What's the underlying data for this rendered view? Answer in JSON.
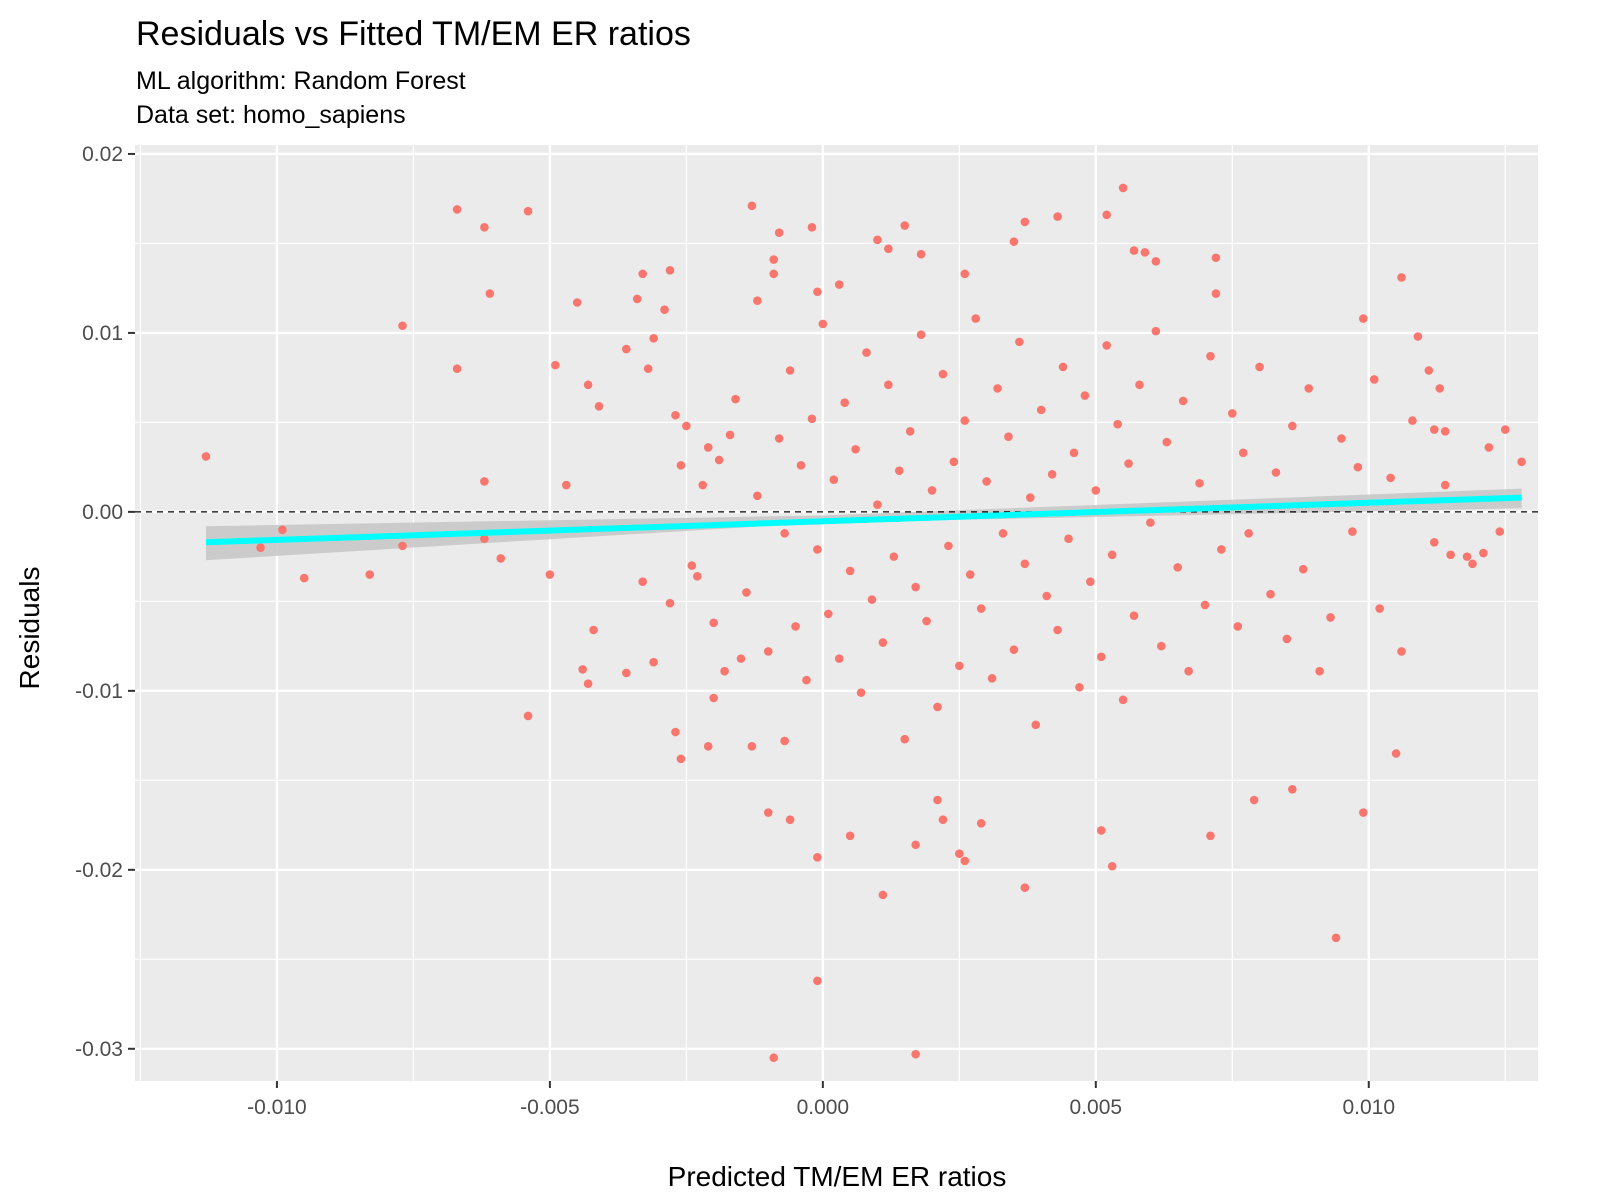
{
  "header": {
    "title": "Residuals vs Fitted TM/EM ER ratios",
    "subtitle_line1": "ML algorithm: Random Forest",
    "subtitle_line2": "Data set: homo_sapiens"
  },
  "chart_data": {
    "type": "scatter",
    "title": "Residuals vs Fitted TM/EM ER ratios",
    "subtitle": [
      "ML algorithm: Random Forest",
      "Data set: homo_sapiens"
    ],
    "xlabel": "Predicted TM/EM ER ratios",
    "ylabel": "Residuals",
    "xlim": [
      -0.0126,
      0.0131
    ],
    "ylim": [
      -0.0318,
      0.0205
    ],
    "x_ticks": [
      -0.01,
      -0.005,
      0.0,
      0.005,
      0.01
    ],
    "x_tick_labels": [
      "-0.010",
      "-0.005",
      "0.000",
      "0.005",
      "0.010"
    ],
    "y_ticks": [
      -0.03,
      -0.02,
      -0.01,
      0.0,
      0.01,
      0.02
    ],
    "y_tick_labels": [
      "-0.03",
      "-0.02",
      "-0.01",
      "0.00",
      "0.01",
      "0.02"
    ],
    "grid": true,
    "point_color": "#F8766D",
    "panel_background": "#EBEBEB",
    "reference_line": {
      "y": 0.0,
      "style": "dashed",
      "color": "#000000"
    },
    "trend_line": {
      "method": "linear fit",
      "color": "#00FFFF",
      "band_color": "#C8C8C8",
      "points": [
        [
          -0.0113,
          -0.0017
        ],
        [
          0.0128,
          0.0008
        ]
      ],
      "band": [
        [
          -0.0113,
          -0.0027,
          -0.0008
        ],
        [
          0.0,
          -0.0006,
          -0.0002
        ],
        [
          0.0128,
          0.0002,
          0.0013
        ]
      ]
    },
    "series": [
      {
        "points": [
          [
            -0.0113,
            0.0031
          ],
          [
            -0.0103,
            -0.002
          ],
          [
            -0.0099,
            -0.001
          ],
          [
            -0.0095,
            -0.0037
          ],
          [
            -0.0083,
            -0.0035
          ],
          [
            -0.0077,
            0.0104
          ],
          [
            -0.0077,
            -0.0019
          ],
          [
            -0.0067,
            0.0169
          ],
          [
            -0.0067,
            0.008
          ],
          [
            -0.0062,
            0.0159
          ],
          [
            -0.0061,
            0.0122
          ],
          [
            -0.0062,
            0.0017
          ],
          [
            -0.0062,
            -0.0015
          ],
          [
            -0.0059,
            -0.0026
          ],
          [
            -0.0054,
            0.0168
          ],
          [
            -0.0054,
            -0.0114
          ],
          [
            -0.005,
            -0.0035
          ],
          [
            -0.0049,
            0.0082
          ],
          [
            -0.0047,
            0.0015
          ],
          [
            -0.0045,
            0.0117
          ],
          [
            -0.0043,
            0.0071
          ],
          [
            -0.0041,
            0.0059
          ],
          [
            -0.0044,
            -0.0088
          ],
          [
            -0.0043,
            -0.0096
          ],
          [
            -0.0042,
            -0.0066
          ],
          [
            -0.0036,
            0.0091
          ],
          [
            -0.0034,
            0.0119
          ],
          [
            -0.0033,
            0.0133
          ],
          [
            -0.0032,
            0.008
          ],
          [
            -0.0031,
            0.0097
          ],
          [
            -0.0033,
            -0.0039
          ],
          [
            -0.0036,
            -0.009
          ],
          [
            -0.0031,
            -0.0084
          ],
          [
            -0.0029,
            0.0113
          ],
          [
            -0.0028,
            0.0135
          ],
          [
            -0.0027,
            0.0054
          ],
          [
            -0.0026,
            0.0026
          ],
          [
            -0.0027,
            -0.0123
          ],
          [
            -0.0026,
            -0.0138
          ],
          [
            -0.0024,
            -0.003
          ],
          [
            -0.0021,
            0.0036
          ],
          [
            -0.002,
            -0.0104
          ],
          [
            -0.0021,
            -0.0131
          ],
          [
            -0.0017,
            0.0043
          ],
          [
            -0.0015,
            -0.0082
          ],
          [
            -0.0013,
            0.0171
          ],
          [
            -0.0012,
            0.0118
          ],
          [
            -0.0013,
            -0.0131
          ],
          [
            -0.001,
            -0.0168
          ],
          [
            -0.0009,
            0.0141
          ],
          [
            -0.0009,
            0.0133
          ],
          [
            -0.0008,
            0.0156
          ],
          [
            -0.0007,
            -0.0128
          ],
          [
            -0.0006,
            -0.0172
          ],
          [
            -0.0009,
            -0.0305
          ],
          [
            -0.0002,
            0.0159
          ],
          [
            -0.0001,
            0.0123
          ],
          [
            -0.0001,
            -0.0262
          ],
          [
            -0.0001,
            -0.0193
          ],
          [
            0.0003,
            0.0127
          ],
          [
            0.0005,
            -0.0181
          ],
          [
            0.0011,
            -0.0214
          ],
          [
            0.001,
            0.0152
          ],
          [
            0.0012,
            0.0147
          ],
          [
            0.0015,
            0.016
          ],
          [
            0.0017,
            -0.0186
          ],
          [
            0.0017,
            -0.0303
          ],
          [
            0.0018,
            0.0144
          ],
          [
            0.0021,
            -0.0161
          ],
          [
            0.0022,
            -0.0172
          ],
          [
            0.0025,
            -0.0191
          ],
          [
            0.0026,
            -0.0195
          ],
          [
            0.0026,
            0.0133
          ],
          [
            0.0029,
            -0.0174
          ],
          [
            0.0035,
            0.0151
          ],
          [
            0.0037,
            0.0162
          ],
          [
            0.0037,
            -0.021
          ],
          [
            0.0043,
            0.0165
          ],
          [
            0.0052,
            0.0166
          ],
          [
            0.0055,
            0.0181
          ],
          [
            0.0057,
            0.0146
          ],
          [
            0.0053,
            -0.0198
          ],
          [
            0.0051,
            -0.0178
          ],
          [
            0.0059,
            0.0145
          ],
          [
            0.0061,
            0.014
          ],
          [
            0.0072,
            0.0142
          ],
          [
            0.0072,
            0.0122
          ],
          [
            0.0071,
            -0.0181
          ],
          [
            0.0079,
            -0.0161
          ],
          [
            0.0086,
            -0.0155
          ],
          [
            0.0094,
            -0.0238
          ],
          [
            0.0099,
            -0.0168
          ],
          [
            0.0105,
            -0.0135
          ],
          [
            0.0106,
            -0.0078
          ],
          [
            0.0106,
            0.0131
          ],
          [
            0.0109,
            0.0098
          ],
          [
            0.0111,
            0.0079
          ],
          [
            0.0113,
            0.0069
          ],
          [
            0.0112,
            0.0046
          ],
          [
            0.0114,
            0.0015
          ],
          [
            0.0115,
            -0.0024
          ],
          [
            0.0118,
            -0.0025
          ],
          [
            0.0119,
            -0.0029
          ],
          [
            0.0122,
            0.0036
          ],
          [
            0.0124,
            -0.0011
          ],
          [
            0.0125,
            0.0046
          ],
          [
            0.0128,
            0.0028
          ],
          [
            0.0121,
            -0.0023
          ],
          [
            0.0114,
            0.0045
          ],
          [
            0.0112,
            -0.0017
          ],
          [
            0.0108,
            0.0051
          ],
          [
            0.0104,
            0.0019
          ],
          [
            0.0102,
            -0.0054
          ],
          [
            0.0101,
            0.0074
          ],
          [
            0.0099,
            0.0108
          ],
          [
            0.0098,
            0.0025
          ],
          [
            0.0097,
            -0.0011
          ],
          [
            0.0095,
            0.0041
          ],
          [
            0.0093,
            -0.0059
          ],
          [
            0.0091,
            -0.0089
          ],
          [
            0.0089,
            0.0069
          ],
          [
            0.0088,
            -0.0032
          ],
          [
            0.0086,
            0.0048
          ],
          [
            0.0085,
            -0.0071
          ],
          [
            0.0083,
            0.0022
          ],
          [
            0.0082,
            -0.0046
          ],
          [
            0.008,
            0.0081
          ],
          [
            0.0078,
            -0.0012
          ],
          [
            0.0077,
            0.0033
          ],
          [
            0.0076,
            -0.0064
          ],
          [
            0.0075,
            0.0055
          ],
          [
            0.0073,
            -0.0021
          ],
          [
            0.0071,
            0.0087
          ],
          [
            0.007,
            -0.0052
          ],
          [
            0.0069,
            0.0016
          ],
          [
            0.0067,
            -0.0089
          ],
          [
            0.0066,
            0.0062
          ],
          [
            0.0065,
            -0.0031
          ],
          [
            0.0063,
            0.0039
          ],
          [
            0.0062,
            -0.0075
          ],
          [
            0.0061,
            0.0101
          ],
          [
            0.006,
            -0.0006
          ],
          [
            0.0058,
            0.0071
          ],
          [
            0.0057,
            -0.0058
          ],
          [
            0.0056,
            0.0027
          ],
          [
            0.0055,
            -0.0105
          ],
          [
            0.0054,
            0.0049
          ],
          [
            0.0053,
            -0.0024
          ],
          [
            0.0052,
            0.0093
          ],
          [
            0.0051,
            -0.0081
          ],
          [
            0.005,
            0.0012
          ],
          [
            0.0049,
            -0.0039
          ],
          [
            0.0048,
            0.0065
          ],
          [
            0.0047,
            -0.0098
          ],
          [
            0.0046,
            0.0033
          ],
          [
            0.0045,
            -0.0015
          ],
          [
            0.0044,
            0.0081
          ],
          [
            0.0043,
            -0.0066
          ],
          [
            0.0042,
            0.0021
          ],
          [
            0.0041,
            -0.0047
          ],
          [
            0.004,
            0.0057
          ],
          [
            0.0039,
            -0.0119
          ],
          [
            0.0038,
            0.0008
          ],
          [
            0.0037,
            -0.0029
          ],
          [
            0.0036,
            0.0095
          ],
          [
            0.0035,
            -0.0077
          ],
          [
            0.0034,
            0.0042
          ],
          [
            0.0033,
            -0.0012
          ],
          [
            0.0032,
            0.0069
          ],
          [
            0.0031,
            -0.0093
          ],
          [
            0.003,
            0.0017
          ],
          [
            0.0029,
            -0.0054
          ],
          [
            0.0028,
            0.0108
          ],
          [
            0.0027,
            -0.0035
          ],
          [
            0.0026,
            0.0051
          ],
          [
            0.0025,
            -0.0086
          ],
          [
            0.0024,
            0.0028
          ],
          [
            0.0023,
            -0.0019
          ],
          [
            0.0022,
            0.0077
          ],
          [
            0.0021,
            -0.0109
          ],
          [
            0.002,
            0.0012
          ],
          [
            0.0019,
            -0.0061
          ],
          [
            0.0018,
            0.0099
          ],
          [
            0.0017,
            -0.0042
          ],
          [
            0.0016,
            0.0045
          ],
          [
            0.0015,
            -0.0127
          ],
          [
            0.0014,
            0.0023
          ],
          [
            0.0013,
            -0.0025
          ],
          [
            0.0012,
            0.0071
          ],
          [
            0.0011,
            -0.0073
          ],
          [
            0.001,
            0.0004
          ],
          [
            0.0009,
            -0.0049
          ],
          [
            0.0008,
            0.0089
          ],
          [
            0.0007,
            -0.0101
          ],
          [
            0.0006,
            0.0035
          ],
          [
            0.0005,
            -0.0033
          ],
          [
            0.0004,
            0.0061
          ],
          [
            0.0003,
            -0.0082
          ],
          [
            0.0002,
            0.0018
          ],
          [
            0.0001,
            -0.0057
          ],
          [
            0.0,
            0.0105
          ],
          [
            -0.0001,
            -0.0021
          ],
          [
            -0.0002,
            0.0052
          ],
          [
            -0.0003,
            -0.0094
          ],
          [
            -0.0004,
            0.0026
          ],
          [
            -0.0005,
            -0.0064
          ],
          [
            -0.0006,
            0.0079
          ],
          [
            -0.0007,
            -0.0012
          ],
          [
            -0.0008,
            0.0041
          ],
          [
            -0.001,
            -0.0078
          ],
          [
            -0.0012,
            0.0009
          ],
          [
            -0.0014,
            -0.0045
          ],
          [
            -0.0016,
            0.0063
          ],
          [
            -0.0018,
            -0.0089
          ],
          [
            -0.0019,
            0.0029
          ],
          [
            -0.002,
            -0.0062
          ],
          [
            -0.0022,
            0.0015
          ],
          [
            -0.0023,
            -0.0036
          ],
          [
            -0.0025,
            0.0048
          ],
          [
            -0.0028,
            -0.0051
          ]
        ]
      }
    ]
  }
}
